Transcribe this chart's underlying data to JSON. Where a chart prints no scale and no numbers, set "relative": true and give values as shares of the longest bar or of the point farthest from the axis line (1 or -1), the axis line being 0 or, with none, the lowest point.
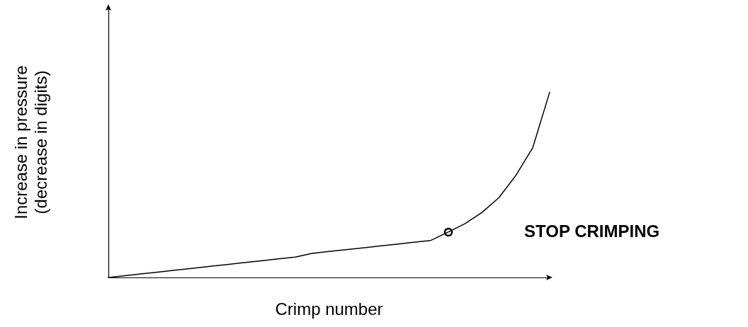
{
  "chart_data": {
    "type": "line",
    "relative": true,
    "xlabel": "Crimp number",
    "ylabel": "Increase in pressure\n(decrease in digits)",
    "categories": [
      null,
      null,
      null,
      null,
      null,
      null,
      null,
      null,
      null,
      null,
      null,
      null,
      null,
      null,
      null,
      null,
      null,
      null,
      null,
      null,
      null,
      null,
      null,
      null,
      null,
      null,
      null
    ],
    "series": [
      {
        "color": "#000000",
        "values": [
          0,
          0.01,
          0.02,
          0.03,
          0.04,
          0.05,
          0.06,
          0.07,
          0.08,
          0.09,
          0.1,
          0.11,
          0.13,
          0.14,
          0.15,
          0.16,
          0.17,
          0.18,
          0.19,
          0.2,
          0.244,
          0.29,
          0.35,
          0.43,
          0.55,
          0.7,
          1.0
        ]
      }
    ],
    "annotations": [
      "STOP CRIMPING"
    ],
    "grid": false,
    "marker": "none",
    "line_style": "solid"
  }
}
